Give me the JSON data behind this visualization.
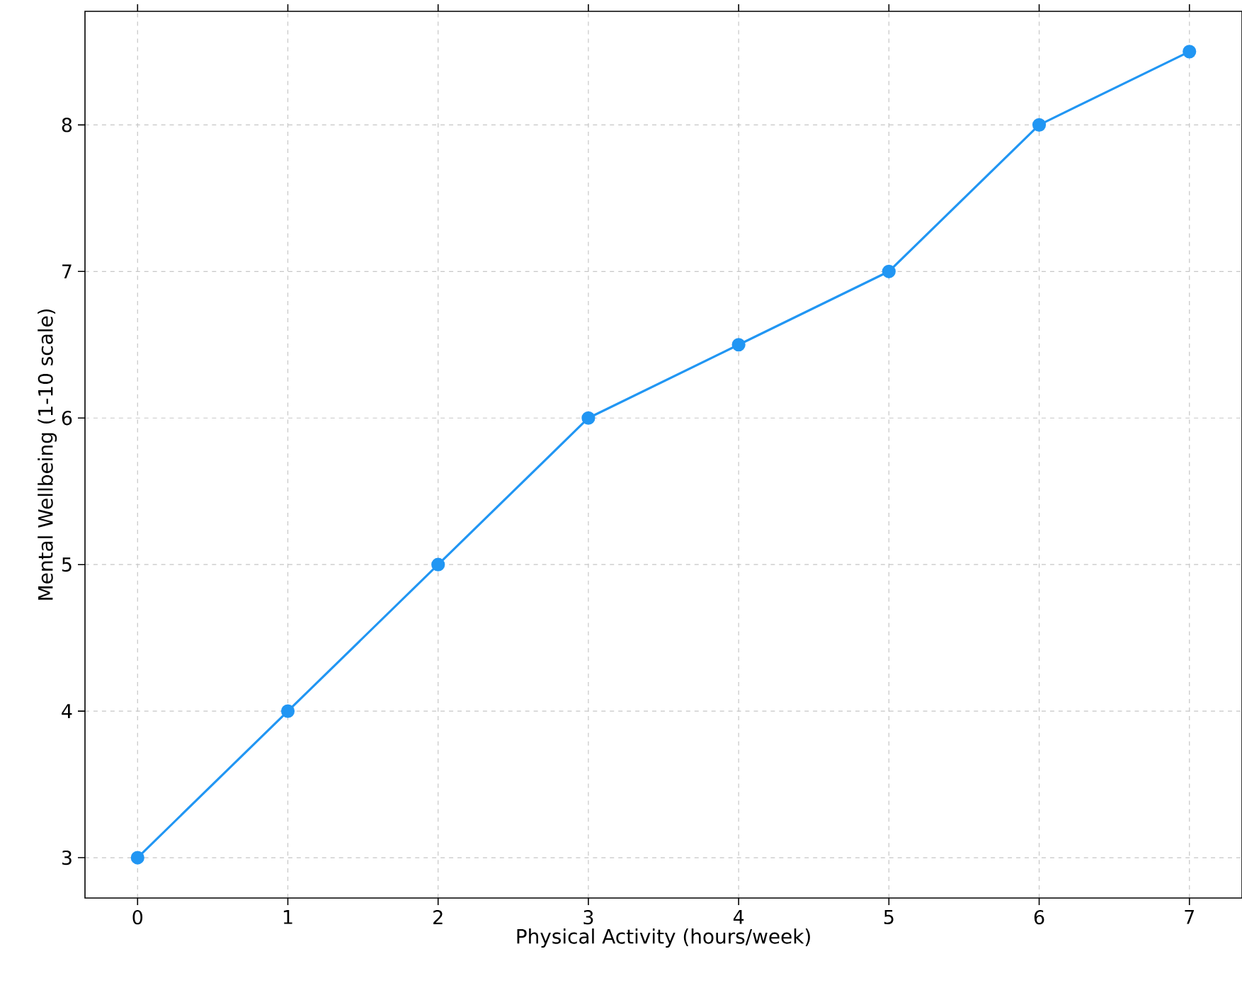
{
  "chart_data": {
    "type": "line",
    "xlabel": "Physical Activity (hours/week)",
    "ylabel": "Mental Wellbeing (1-10 scale)",
    "x": [
      0,
      1,
      2,
      3,
      4,
      5,
      6,
      7
    ],
    "series": [
      {
        "color": "#2196f3",
        "values": [
          3,
          4,
          5,
          6,
          6.5,
          7,
          8,
          8.5
        ]
      }
    ],
    "xlim": [
      -0.35,
      7.35
    ],
    "ylim": [
      2.725,
      8.775
    ],
    "xticks": [
      0,
      1,
      2,
      3,
      4,
      5,
      6,
      7
    ],
    "yticks": [
      3,
      4,
      5,
      6,
      7,
      8
    ],
    "grid": true,
    "marker": "circle",
    "line_style": "solid"
  }
}
